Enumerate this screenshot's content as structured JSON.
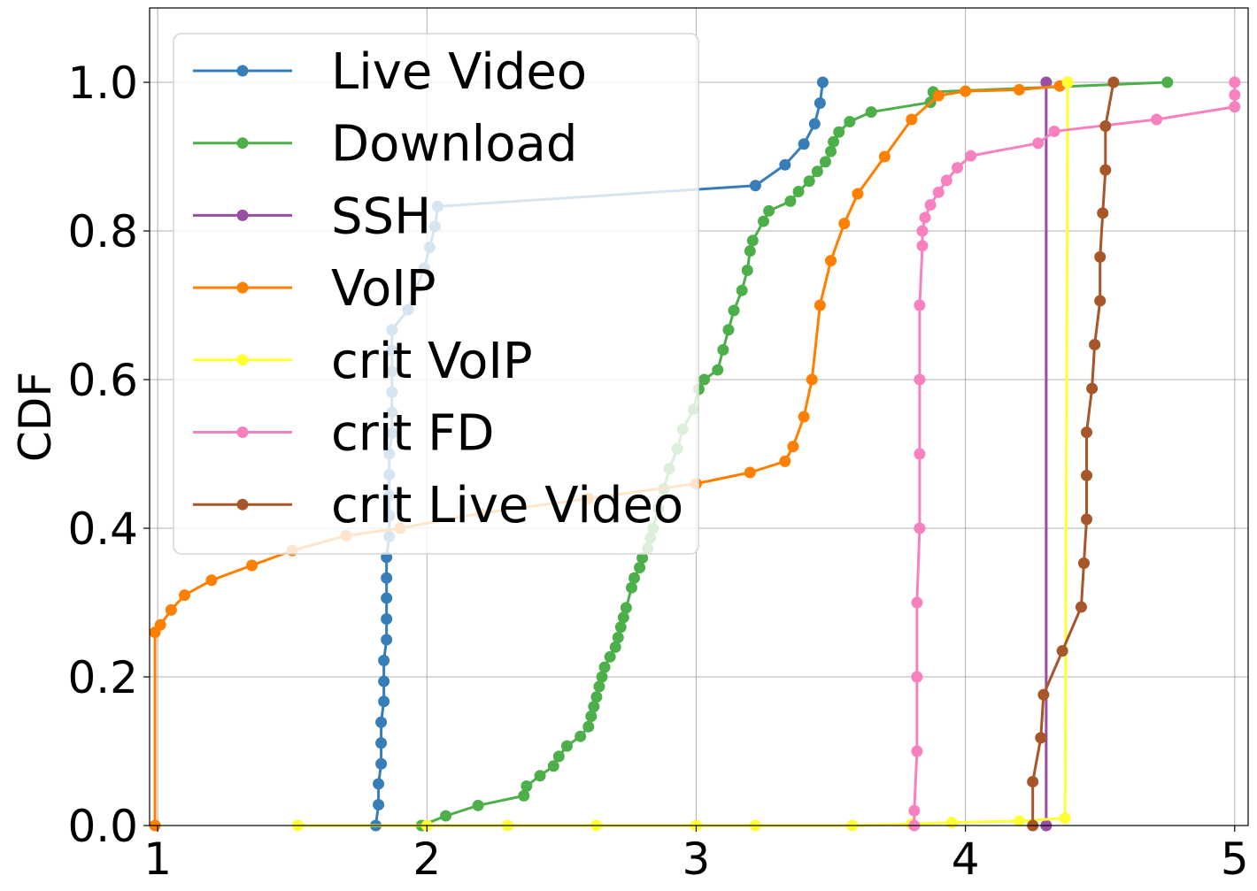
{
  "chart_data": {
    "type": "line",
    "title": "",
    "xlabel": "",
    "ylabel": "CDF",
    "xlim": [
      0.97,
      5.05
    ],
    "ylim": [
      0.0,
      1.1
    ],
    "xticks": [
      "1",
      "2",
      "3",
      "4",
      "5"
    ],
    "yticks": [
      "0.0",
      "0.2",
      "0.4",
      "0.6",
      "0.8",
      "1.0"
    ],
    "grid": true,
    "legend_position": "upper-left",
    "series": [
      {
        "name": "Live Video",
        "color": "#377eb8",
        "points": [
          [
            1.81,
            0.0
          ],
          [
            1.82,
            0.028
          ],
          [
            1.82,
            0.056
          ],
          [
            1.83,
            0.083
          ],
          [
            1.83,
            0.111
          ],
          [
            1.83,
            0.139
          ],
          [
            1.84,
            0.167
          ],
          [
            1.84,
            0.194
          ],
          [
            1.84,
            0.222
          ],
          [
            1.85,
            0.25
          ],
          [
            1.85,
            0.278
          ],
          [
            1.85,
            0.306
          ],
          [
            1.85,
            0.333
          ],
          [
            1.85,
            0.361
          ],
          [
            1.86,
            0.389
          ],
          [
            1.86,
            0.417
          ],
          [
            1.86,
            0.444
          ],
          [
            1.86,
            0.472
          ],
          [
            1.86,
            0.5
          ],
          [
            1.87,
            0.528
          ],
          [
            1.87,
            0.556
          ],
          [
            1.87,
            0.583
          ],
          [
            1.87,
            0.611
          ],
          [
            1.87,
            0.639
          ],
          [
            1.87,
            0.667
          ],
          [
            1.93,
            0.694
          ],
          [
            1.99,
            0.75
          ],
          [
            2.01,
            0.778
          ],
          [
            2.03,
            0.806
          ],
          [
            2.04,
            0.833
          ],
          [
            3.22,
            0.861
          ],
          [
            3.33,
            0.889
          ],
          [
            3.4,
            0.917
          ],
          [
            3.44,
            0.944
          ],
          [
            3.46,
            0.972
          ],
          [
            3.47,
            1.0
          ]
        ]
      },
      {
        "name": "Download",
        "color": "#4daf4a",
        "points": [
          [
            1.98,
            0.0
          ],
          [
            2.07,
            0.013
          ],
          [
            2.19,
            0.027
          ],
          [
            2.36,
            0.04
          ],
          [
            2.37,
            0.053
          ],
          [
            2.42,
            0.067
          ],
          [
            2.47,
            0.08
          ],
          [
            2.49,
            0.093
          ],
          [
            2.52,
            0.107
          ],
          [
            2.57,
            0.12
          ],
          [
            2.6,
            0.133
          ],
          [
            2.61,
            0.147
          ],
          [
            2.62,
            0.16
          ],
          [
            2.63,
            0.173
          ],
          [
            2.64,
            0.187
          ],
          [
            2.65,
            0.2
          ],
          [
            2.66,
            0.213
          ],
          [
            2.68,
            0.227
          ],
          [
            2.7,
            0.24
          ],
          [
            2.71,
            0.253
          ],
          [
            2.72,
            0.267
          ],
          [
            2.73,
            0.28
          ],
          [
            2.74,
            0.293
          ],
          [
            2.76,
            0.32
          ],
          [
            2.77,
            0.333
          ],
          [
            2.79,
            0.347
          ],
          [
            2.8,
            0.36
          ],
          [
            2.82,
            0.373
          ],
          [
            2.83,
            0.387
          ],
          [
            2.84,
            0.4
          ],
          [
            2.86,
            0.427
          ],
          [
            2.88,
            0.453
          ],
          [
            2.9,
            0.48
          ],
          [
            2.93,
            0.507
          ],
          [
            2.95,
            0.533
          ],
          [
            2.99,
            0.56
          ],
          [
            3.01,
            0.587
          ],
          [
            3.03,
            0.6
          ],
          [
            3.08,
            0.613
          ],
          [
            3.1,
            0.64
          ],
          [
            3.12,
            0.667
          ],
          [
            3.14,
            0.693
          ],
          [
            3.17,
            0.72
          ],
          [
            3.19,
            0.747
          ],
          [
            3.2,
            0.773
          ],
          [
            3.21,
            0.787
          ],
          [
            3.25,
            0.813
          ],
          [
            3.27,
            0.827
          ],
          [
            3.35,
            0.84
          ],
          [
            3.38,
            0.853
          ],
          [
            3.42,
            0.867
          ],
          [
            3.45,
            0.88
          ],
          [
            3.48,
            0.893
          ],
          [
            3.5,
            0.907
          ],
          [
            3.51,
            0.92
          ],
          [
            3.53,
            0.933
          ],
          [
            3.57,
            0.947
          ],
          [
            3.65,
            0.96
          ],
          [
            3.87,
            0.973
          ],
          [
            3.88,
            0.987
          ],
          [
            4.75,
            1.0
          ]
        ]
      },
      {
        "name": "SSH",
        "color": "#984ea3",
        "points": [
          [
            4.3,
            0.0
          ],
          [
            4.3,
            1.0
          ]
        ]
      },
      {
        "name": "VoIP",
        "color": "#ff7f00",
        "points": [
          [
            0.99,
            0.0
          ],
          [
            0.99,
            0.26
          ],
          [
            1.01,
            0.27
          ],
          [
            1.05,
            0.29
          ],
          [
            1.1,
            0.31
          ],
          [
            1.2,
            0.33
          ],
          [
            1.35,
            0.35
          ],
          [
            1.5,
            0.37
          ],
          [
            1.7,
            0.39
          ],
          [
            1.9,
            0.4
          ],
          [
            2.2,
            0.42
          ],
          [
            2.6,
            0.44
          ],
          [
            3.0,
            0.46
          ],
          [
            3.2,
            0.475
          ],
          [
            3.33,
            0.49
          ],
          [
            3.36,
            0.51
          ],
          [
            3.4,
            0.55
          ],
          [
            3.43,
            0.6
          ],
          [
            3.46,
            0.7
          ],
          [
            3.5,
            0.76
          ],
          [
            3.55,
            0.81
          ],
          [
            3.6,
            0.85
          ],
          [
            3.7,
            0.9
          ],
          [
            3.8,
            0.95
          ],
          [
            3.9,
            0.982
          ],
          [
            4.0,
            0.988
          ],
          [
            4.2,
            0.99
          ],
          [
            4.35,
            0.995
          ],
          [
            4.38,
            1.0
          ]
        ]
      },
      {
        "name": "crit VoIP",
        "color": "#ffff33",
        "points": [
          [
            1.52,
            0.0
          ],
          [
            2.0,
            0.0
          ],
          [
            2.3,
            0.0
          ],
          [
            2.63,
            0.0
          ],
          [
            3.0,
            0.0
          ],
          [
            3.22,
            0.0
          ],
          [
            3.58,
            0.0
          ],
          [
            3.8,
            0.002
          ],
          [
            3.95,
            0.004
          ],
          [
            4.2,
            0.006
          ],
          [
            4.37,
            0.01
          ],
          [
            4.38,
            1.0
          ]
        ]
      },
      {
        "name": "crit FD",
        "color": "#f781bf",
        "points": [
          [
            3.81,
            0.0
          ],
          [
            3.81,
            0.02
          ],
          [
            3.82,
            0.1
          ],
          [
            3.82,
            0.2
          ],
          [
            3.82,
            0.3
          ],
          [
            3.83,
            0.4
          ],
          [
            3.83,
            0.5
          ],
          [
            3.83,
            0.6
          ],
          [
            3.83,
            0.7
          ],
          [
            3.84,
            0.78
          ],
          [
            3.84,
            0.8
          ],
          [
            3.85,
            0.818
          ],
          [
            3.87,
            0.835
          ],
          [
            3.9,
            0.852
          ],
          [
            3.93,
            0.868
          ],
          [
            3.97,
            0.885
          ],
          [
            4.02,
            0.901
          ],
          [
            4.27,
            0.918
          ],
          [
            4.33,
            0.934
          ],
          [
            4.71,
            0.95
          ],
          [
            5.0,
            0.967
          ],
          [
            5.0,
            0.983
          ],
          [
            5.0,
            1.0
          ]
        ]
      },
      {
        "name": "crit Live Video",
        "color": "#a65628",
        "points": [
          [
            4.25,
            0.0
          ],
          [
            4.25,
            0.059
          ],
          [
            4.28,
            0.118
          ],
          [
            4.29,
            0.176
          ],
          [
            4.36,
            0.235
          ],
          [
            4.43,
            0.294
          ],
          [
            4.44,
            0.353
          ],
          [
            4.45,
            0.412
          ],
          [
            4.45,
            0.471
          ],
          [
            4.45,
            0.529
          ],
          [
            4.47,
            0.588
          ],
          [
            4.48,
            0.647
          ],
          [
            4.5,
            0.706
          ],
          [
            4.5,
            0.765
          ],
          [
            4.51,
            0.824
          ],
          [
            4.52,
            0.882
          ],
          [
            4.52,
            0.941
          ],
          [
            4.55,
            1.0
          ]
        ]
      }
    ]
  }
}
